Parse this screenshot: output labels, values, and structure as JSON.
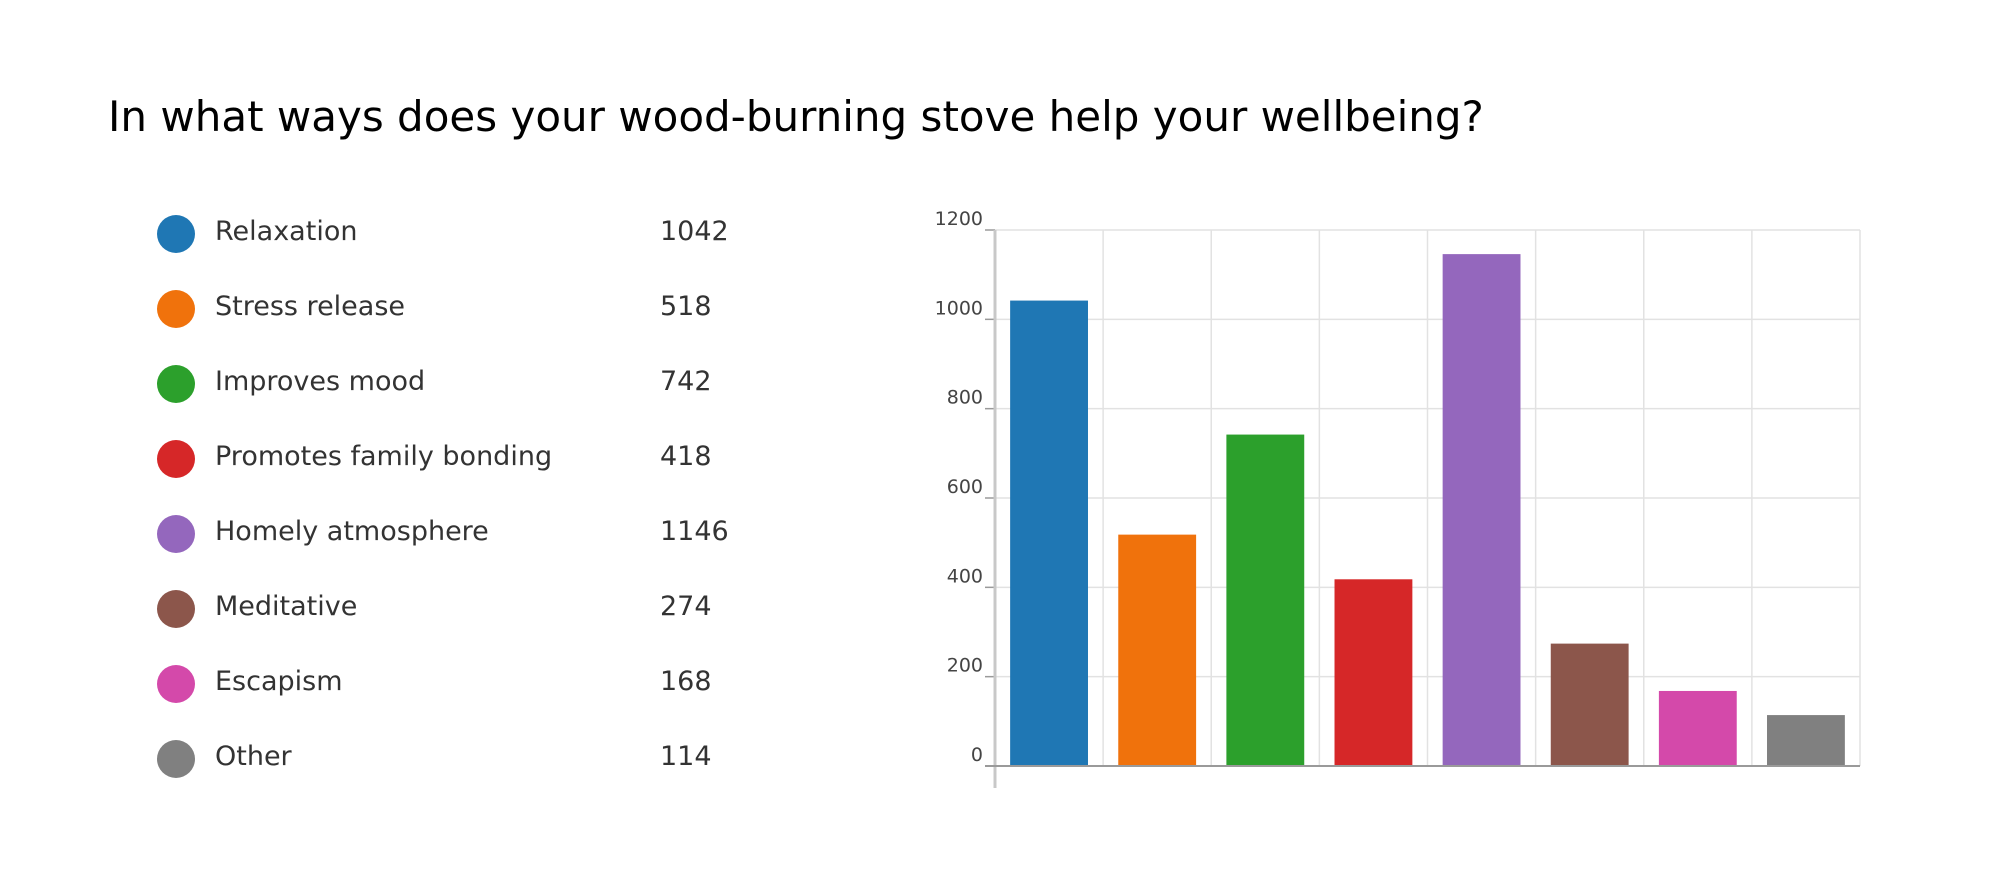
{
  "title": "In what ways does your wood-burning stove help your wellbeing?",
  "legend": {
    "items": [
      {
        "label": "Relaxation",
        "count": "1042",
        "color": "#1f77b4"
      },
      {
        "label": "Stress release",
        "count": "518",
        "color": "#f0720c"
      },
      {
        "label": "Improves mood",
        "count": "742",
        "color": "#2ca02c"
      },
      {
        "label": "Promotes family bonding",
        "count": "418",
        "color": "#d62728"
      },
      {
        "label": "Homely atmosphere",
        "count": "1146",
        "color": "#9467bd"
      },
      {
        "label": "Meditative",
        "count": "274",
        "color": "#8c564b"
      },
      {
        "label": "Escapism",
        "count": "168",
        "color": "#d449aa"
      },
      {
        "label": "Other",
        "count": "114",
        "color": "#808080"
      }
    ]
  },
  "chart_data": {
    "type": "bar",
    "title": "In what ways does your wood-burning stove help your wellbeing?",
    "categories": [
      "Relaxation",
      "Stress release",
      "Improves mood",
      "Promotes family bonding",
      "Homely atmosphere",
      "Meditative",
      "Escapism",
      "Other"
    ],
    "values": [
      1042,
      518,
      742,
      418,
      1146,
      274,
      168,
      114
    ],
    "colors": [
      "#1f77b4",
      "#f0720c",
      "#2ca02c",
      "#d62728",
      "#9467bd",
      "#8c564b",
      "#d449aa",
      "#808080"
    ],
    "xlabel": "",
    "ylabel": "",
    "ylim": [
      0,
      1200
    ],
    "yticks": [
      "0",
      "200",
      "400",
      "600",
      "800",
      "1000",
      "1200"
    ],
    "grid": true,
    "legend": "left"
  }
}
